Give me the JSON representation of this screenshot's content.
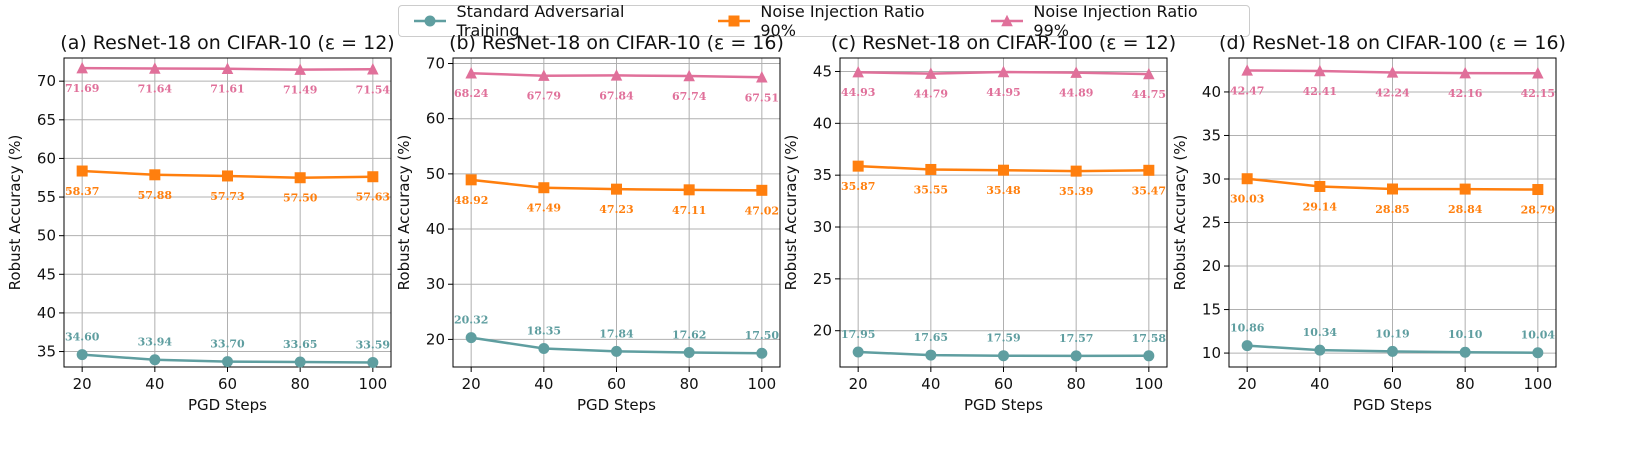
{
  "colors": {
    "standard": "#5f9ea0",
    "noise90": "#ff7f0e",
    "noise99": "#e0709a",
    "grid": "#b0b0b0"
  },
  "legend": [
    {
      "key": "standard",
      "label": "Standard Adversarial Training",
      "marker": "circle"
    },
    {
      "key": "noise90",
      "label": "Noise Injection Ratio 90%",
      "marker": "square"
    },
    {
      "key": "noise99",
      "label": "Noise Injection Ratio 99%",
      "marker": "triangle"
    }
  ],
  "chart_data": [
    {
      "type": "line",
      "title": "(a) ResNet-18 on CIFAR-10 (ε = 12)",
      "xlabel": "PGD Steps",
      "ylabel": "Robust Accuracy (%)",
      "x": [
        20,
        40,
        60,
        80,
        100
      ],
      "xticks": [
        20,
        40,
        60,
        80,
        100
      ],
      "ylim": [
        33,
        73
      ],
      "yticks": [
        35,
        40,
        45,
        50,
        55,
        60,
        65,
        70
      ],
      "series": [
        {
          "key": "standard",
          "name": "Standard Adversarial Training",
          "values": [
            34.6,
            33.94,
            33.7,
            33.65,
            33.59
          ],
          "labels": [
            "34.60",
            "33.94",
            "33.70",
            "33.65",
            "33.59"
          ]
        },
        {
          "key": "noise90",
          "name": "Noise Injection Ratio 90%",
          "values": [
            58.37,
            57.88,
            57.73,
            57.5,
            57.63
          ],
          "labels": [
            "58.37",
            "57.88",
            "57.73",
            "57.50",
            "57.63"
          ]
        },
        {
          "key": "noise99",
          "name": "Noise Injection Ratio 99%",
          "values": [
            71.69,
            71.64,
            71.61,
            71.49,
            71.54
          ],
          "labels": [
            "71.69",
            "71.64",
            "71.61",
            "71.49",
            "71.54"
          ]
        }
      ]
    },
    {
      "type": "line",
      "title": "(b) ResNet-18 on CIFAR-10 (ε = 16)",
      "xlabel": "PGD Steps",
      "ylabel": "Robust Accuracy (%)",
      "x": [
        20,
        40,
        60,
        80,
        100
      ],
      "xticks": [
        20,
        40,
        60,
        80,
        100
      ],
      "ylim": [
        15,
        71
      ],
      "yticks": [
        20,
        30,
        40,
        50,
        60,
        70
      ],
      "series": [
        {
          "key": "standard",
          "name": "Standard Adversarial Training",
          "values": [
            20.32,
            18.35,
            17.84,
            17.62,
            17.5
          ],
          "labels": [
            "20.32",
            "18.35",
            "17.84",
            "17.62",
            "17.50"
          ]
        },
        {
          "key": "noise90",
          "name": "Noise Injection Ratio 90%",
          "values": [
            48.92,
            47.49,
            47.23,
            47.11,
            47.02
          ],
          "labels": [
            "48.92",
            "47.49",
            "47.23",
            "47.11",
            "47.02"
          ]
        },
        {
          "key": "noise99",
          "name": "Noise Injection Ratio 99%",
          "values": [
            68.24,
            67.79,
            67.84,
            67.74,
            67.51
          ],
          "labels": [
            "68.24",
            "67.79",
            "67.84",
            "67.74",
            "67.51"
          ]
        }
      ]
    },
    {
      "type": "line",
      "title": "(c) ResNet-18 on CIFAR-100 (ε = 12)",
      "xlabel": "PGD Steps",
      "ylabel": "Robust Accuracy (%)",
      "x": [
        20,
        40,
        60,
        80,
        100
      ],
      "xticks": [
        20,
        40,
        60,
        80,
        100
      ],
      "ylim": [
        16.5,
        46.3
      ],
      "yticks": [
        20,
        25,
        30,
        35,
        40,
        45
      ],
      "series": [
        {
          "key": "standard",
          "name": "Standard Adversarial Training",
          "values": [
            17.95,
            17.65,
            17.59,
            17.57,
            17.58
          ],
          "labels": [
            "17.95",
            "17.65",
            "17.59",
            "17.57",
            "17.58"
          ]
        },
        {
          "key": "noise90",
          "name": "Noise Injection Ratio 90%",
          "values": [
            35.87,
            35.55,
            35.48,
            35.39,
            35.47
          ],
          "labels": [
            "35.87",
            "35.55",
            "35.48",
            "35.39",
            "35.47"
          ]
        },
        {
          "key": "noise99",
          "name": "Noise Injection Ratio 99%",
          "values": [
            44.93,
            44.79,
            44.95,
            44.89,
            44.75
          ],
          "labels": [
            "44.93",
            "44.79",
            "44.95",
            "44.89",
            "44.75"
          ]
        }
      ]
    },
    {
      "type": "line",
      "title": "(d) ResNet-18 on CIFAR-100 (ε = 16)",
      "xlabel": "PGD Steps",
      "ylabel": "Robust Accuracy (%)",
      "x": [
        20,
        40,
        60,
        80,
        100
      ],
      "xticks": [
        20,
        40,
        60,
        80,
        100
      ],
      "ylim": [
        8.4,
        43.9
      ],
      "yticks": [
        10,
        15,
        20,
        25,
        30,
        35,
        40
      ],
      "series": [
        {
          "key": "standard",
          "name": "Standard Adversarial Training",
          "values": [
            10.86,
            10.34,
            10.19,
            10.1,
            10.04
          ],
          "labels": [
            "10.86",
            "10.34",
            "10.19",
            "10.10",
            "10.04"
          ]
        },
        {
          "key": "noise90",
          "name": "Noise Injection Ratio 90%",
          "values": [
            30.03,
            29.14,
            28.85,
            28.84,
            28.79
          ],
          "labels": [
            "30.03",
            "29.14",
            "28.85",
            "28.84",
            "28.79"
          ]
        },
        {
          "key": "noise99",
          "name": "Noise Injection Ratio 99%",
          "values": [
            42.47,
            42.41,
            42.24,
            42.16,
            42.15
          ],
          "labels": [
            "42.47",
            "42.41",
            "42.24",
            "42.16",
            "42.15"
          ]
        }
      ]
    }
  ]
}
